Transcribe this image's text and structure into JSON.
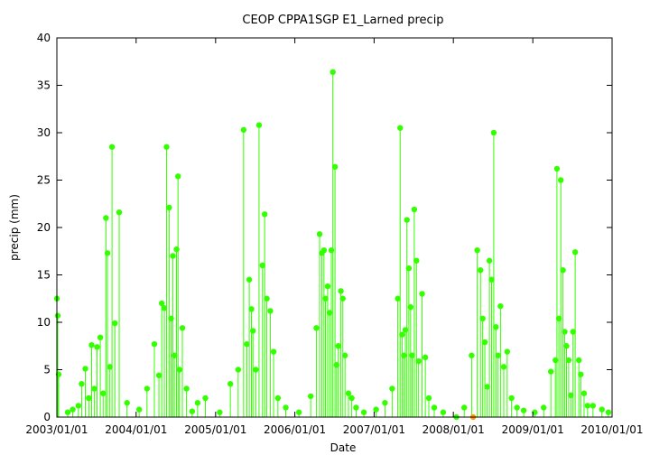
{
  "chart_data": {
    "type": "line",
    "title": "CEOP CPPA1SGP E1_Larned precip",
    "xlabel": "Date",
    "ylabel": "precip (mm)",
    "ylim": [
      0,
      40
    ],
    "yticks": [
      0,
      5,
      10,
      15,
      20,
      25,
      30,
      35,
      40
    ],
    "xlim": [
      "2003/01/01",
      "2010/01/01"
    ],
    "xticks": [
      "2003/01/01",
      "2004/01/01",
      "2005/01/01",
      "2006/01/01",
      "2007/01/01",
      "2008/01/01",
      "2009/01/01",
      "2010/01/01"
    ],
    "grid": false,
    "legend": "none",
    "series": [
      {
        "color": "#33ff00",
        "marker": "circle",
        "x": [
          "2003/01/01",
          "2003/01/05",
          "2003/01/09",
          "2003/02/20",
          "2003/03/15",
          "2003/04/10",
          "2003/04/25",
          "2003/05/12",
          "2003/05/28",
          "2003/06/10",
          "2003/06/22",
          "2003/07/05",
          "2003/07/20",
          "2003/08/02",
          "2003/08/15",
          "2003/08/22",
          "2003/09/02",
          "2003/09/12",
          "2003/09/25",
          "2003/10/15",
          "2003/11/20",
          "2004/01/15",
          "2004/02/20",
          "2004/03/25",
          "2004/04/15",
          "2004/04/28",
          "2004/05/10",
          "2004/05/20",
          "2004/06/01",
          "2004/06/10",
          "2004/06/18",
          "2004/06/25",
          "2004/07/05",
          "2004/07/12",
          "2004/07/18",
          "2004/08/01",
          "2004/08/20",
          "2004/09/15",
          "2004/10/10",
          "2004/11/15",
          "2005/01/20",
          "2005/03/10",
          "2005/04/15",
          "2005/05/10",
          "2005/05/25",
          "2005/06/05",
          "2005/06/15",
          "2005/06/22",
          "2005/07/05",
          "2005/07/20",
          "2005/08/05",
          "2005/08/15",
          "2005/08/25",
          "2005/09/10",
          "2005/09/25",
          "2005/10/15",
          "2005/11/20",
          "2006/01/20",
          "2006/03/15",
          "2006/04/10",
          "2006/04/25",
          "2006/05/05",
          "2006/05/15",
          "2006/05/22",
          "2006/06/01",
          "2006/06/10",
          "2006/06/18",
          "2006/06/25",
          "2006/07/05",
          "2006/07/12",
          "2006/07/20",
          "2006/08/01",
          "2006/08/10",
          "2006/08/20",
          "2006/09/05",
          "2006/09/20",
          "2006/10/10",
          "2006/11/15",
          "2007/01/10",
          "2007/02/20",
          "2007/03/25",
          "2007/04/20",
          "2007/05/01",
          "2007/05/10",
          "2007/05/18",
          "2007/05/25",
          "2007/06/01",
          "2007/06/10",
          "2007/06/18",
          "2007/06/25",
          "2007/07/05",
          "2007/07/15",
          "2007/07/25",
          "2007/08/10",
          "2007/08/25",
          "2007/09/10",
          "2007/10/05",
          "2007/11/15",
          "2008/01/15",
          "2008/02/20",
          "2008/03/25",
          "2008/04/20",
          "2008/05/05",
          "2008/05/15",
          "2008/05/25",
          "2008/06/05",
          "2008/06/15",
          "2008/06/25",
          "2008/07/05",
          "2008/07/15",
          "2008/07/25",
          "2008/08/05",
          "2008/08/20",
          "2008/09/05",
          "2008/09/25",
          "2008/10/20",
          "2008/11/20",
          "2009/01/10",
          "2009/02/20",
          "2009/03/25",
          "2009/04/15",
          "2009/04/22",
          "2009/05/01",
          "2009/05/10",
          "2009/05/20",
          "2009/05/28",
          "2009/06/05",
          "2009/06/15",
          "2009/06/25",
          "2009/07/05",
          "2009/07/15",
          "2009/08/01",
          "2009/08/10",
          "2009/08/25",
          "2009/09/10",
          "2009/10/05",
          "2009/11/15",
          "2009/12/15"
        ],
        "y": [
          12.5,
          10.7,
          4.5,
          0.5,
          0.8,
          1.2,
          3.5,
          5.1,
          2.0,
          7.6,
          3.0,
          7.4,
          8.4,
          2.5,
          21.0,
          17.3,
          5.3,
          28.5,
          9.9,
          21.6,
          1.5,
          0.8,
          3.0,
          7.7,
          4.4,
          12.0,
          11.5,
          28.5,
          22.1,
          10.4,
          17.0,
          6.5,
          17.7,
          25.4,
          5.0,
          9.4,
          3.0,
          0.6,
          1.5,
          2.0,
          0.5,
          3.5,
          5.0,
          30.3,
          7.7,
          14.5,
          11.4,
          9.1,
          5.0,
          30.8,
          16.0,
          21.4,
          12.5,
          11.2,
          6.9,
          2.0,
          1.0,
          0.5,
          2.2,
          9.4,
          19.3,
          17.3,
          17.6,
          12.5,
          13.8,
          11.0,
          17.6,
          36.4,
          26.4,
          5.5,
          7.5,
          13.3,
          12.5,
          6.5,
          2.5,
          2.0,
          1.0,
          0.5,
          0.8,
          1.5,
          3.0,
          12.5,
          30.5,
          8.7,
          6.5,
          9.2,
          20.8,
          15.7,
          11.6,
          6.5,
          21.9,
          16.5,
          5.9,
          13.0,
          6.3,
          2.0,
          1.0,
          0.5,
          0.0,
          1.0,
          6.5,
          17.6,
          15.5,
          10.4,
          7.9,
          3.2,
          16.5,
          14.5,
          30.0,
          9.5,
          6.5,
          11.7,
          5.3,
          6.9,
          2.0,
          1.0,
          0.7,
          0.5,
          1.0,
          4.8,
          6.0,
          26.2,
          10.4,
          25.0,
          15.5,
          9.0,
          7.5,
          6.0,
          2.3,
          9.0,
          17.4,
          6.0,
          4.5,
          2.5,
          1.2,
          1.2,
          0.8,
          0.5
        ]
      },
      {
        "color": "#ff9900",
        "marker": "circle",
        "x": [
          "2008/04/01"
        ],
        "y": [
          0.0
        ]
      }
    ]
  }
}
